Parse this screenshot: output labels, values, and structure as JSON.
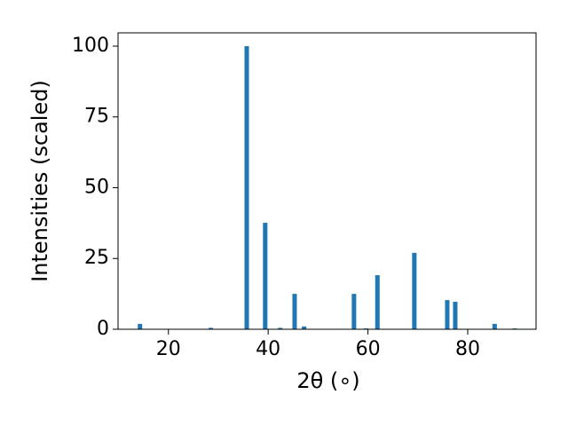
{
  "chart_data": {
    "type": "bar",
    "xlabel": "2θ (∘)",
    "ylabel": "Intensities (scaled)",
    "x": [
      14.3,
      28.5,
      35.7,
      39.4,
      42.4,
      45.3,
      47.2,
      57.2,
      59.6,
      61.9,
      69.3,
      75.9,
      77.5,
      85.4,
      89.4
    ],
    "values": [
      1.9,
      0.5,
      100,
      37.6,
      0.5,
      12.5,
      1,
      12.5,
      0.3,
      19.1,
      27,
      10.3,
      9.7,
      1.9,
      0.3
    ],
    "color": "#1f77b4",
    "xlim": [
      9.9,
      93.7
    ],
    "ylim": [
      0,
      104.7
    ],
    "xticks": [
      20,
      40,
      60,
      80
    ],
    "yticks": [
      0,
      25,
      50,
      75,
      100
    ]
  }
}
